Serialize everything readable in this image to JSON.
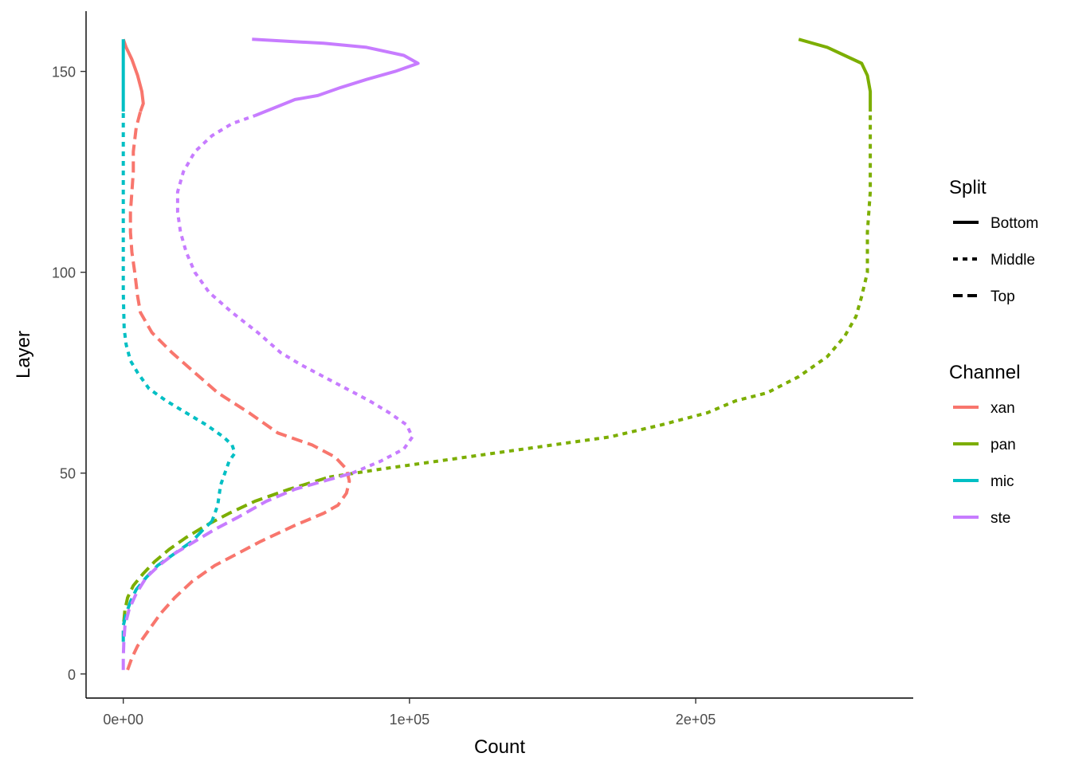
{
  "chart_data": {
    "type": "line",
    "orientation": "horizontal-x-is-count",
    "xlabel": "Count",
    "ylabel": "Layer",
    "xlim": [
      -13000,
      276000
    ],
    "ylim": [
      -6,
      165
    ],
    "x_ticks": [
      0,
      100000,
      200000
    ],
    "x_tick_labels": [
      "0e+00",
      "1e+05",
      "2e+05"
    ],
    "y_ticks": [
      0,
      50,
      100,
      150
    ],
    "y_tick_labels": [
      "0",
      "50",
      "100",
      "150"
    ],
    "grid": false,
    "legend_position": "right",
    "legend_split": {
      "title": "Split",
      "entries": [
        {
          "label": "Bottom",
          "dash": "solid"
        },
        {
          "label": "Middle",
          "dash": "dotted"
        },
        {
          "label": "Top",
          "dash": "dashed"
        }
      ]
    },
    "legend_channel": {
      "title": "Channel",
      "entries": [
        {
          "label": "xan",
          "color": "#F8766D"
        },
        {
          "label": "pan",
          "color": "#7CAE00"
        },
        {
          "label": "mic",
          "color": "#00BFC4"
        },
        {
          "label": "ste",
          "color": "#C77CFF"
        }
      ]
    },
    "series": [
      {
        "channel": "xan",
        "color": "#F8766D",
        "segments": [
          {
            "split": "Top",
            "points": [
              [
                1500,
                1
              ],
              [
                3000,
                4
              ],
              [
                5000,
                7
              ],
              [
                9000,
                11
              ],
              [
                13000,
                15
              ],
              [
                18000,
                19
              ],
              [
                24000,
                23
              ],
              [
                32000,
                27
              ],
              [
                40000,
                30
              ],
              [
                48000,
                33
              ],
              [
                60000,
                37
              ],
              [
                70000,
                40
              ],
              [
                75000,
                42
              ],
              [
                78000,
                45
              ],
              [
                79000,
                48
              ],
              [
                78000,
                51
              ],
              [
                74000,
                54
              ],
              [
                66000,
                57
              ],
              [
                54000,
                60
              ],
              [
                44000,
                65
              ],
              [
                33000,
                70
              ],
              [
                25000,
                75
              ],
              [
                17000,
                80
              ],
              [
                10000,
                85
              ],
              [
                6000,
                90
              ],
              [
                5000,
                94
              ],
              [
                4000,
                100
              ],
              [
                3000,
                105
              ],
              [
                2500,
                110
              ],
              [
                2500,
                115
              ],
              [
                3000,
                120
              ],
              [
                3500,
                125
              ],
              [
                3500,
                130
              ],
              [
                4500,
                136
              ],
              [
                6000,
                140
              ]
            ]
          },
          {
            "split": "Bottom",
            "points": [
              [
                6000,
                140
              ],
              [
                7000,
                142
              ],
              [
                6500,
                145
              ],
              [
                5000,
                149
              ],
              [
                3000,
                153
              ],
              [
                1000,
                156
              ],
              [
                0,
                158
              ]
            ]
          }
        ]
      },
      {
        "channel": "pan",
        "color": "#7CAE00",
        "segments": [
          {
            "split": "Top",
            "points": [
              [
                200,
                13
              ],
              [
                600,
                16
              ],
              [
                1500,
                19
              ],
              [
                3500,
                22
              ],
              [
                7000,
                25
              ],
              [
                11000,
                28
              ],
              [
                16000,
                31
              ],
              [
                22000,
                34
              ],
              [
                29000,
                37
              ],
              [
                37000,
                40
              ],
              [
                46000,
                43
              ],
              [
                58000,
                46
              ],
              [
                72000,
                49
              ]
            ]
          },
          {
            "split": "Middle",
            "points": [
              [
                72000,
                49
              ],
              [
                90000,
                51
              ],
              [
                110000,
                53
              ],
              [
                130000,
                55
              ],
              [
                150000,
                57
              ],
              [
                170000,
                59
              ],
              [
                188000,
                62
              ],
              [
                204000,
                65
              ],
              [
                214000,
                68
              ],
              [
                225000,
                70
              ],
              [
                236000,
                74
              ],
              [
                246000,
                79
              ],
              [
                252000,
                84
              ],
              [
                256000,
                89
              ],
              [
                258000,
                94
              ],
              [
                260000,
                100
              ],
              [
                260000,
                110
              ],
              [
                261000,
                120
              ],
              [
                261000,
                130
              ],
              [
                261000,
                140
              ]
            ]
          },
          {
            "split": "Bottom",
            "points": [
              [
                261000,
                140
              ],
              [
                261000,
                145
              ],
              [
                260000,
                149
              ],
              [
                258000,
                152
              ],
              [
                252000,
                154
              ],
              [
                246000,
                156
              ],
              [
                236000,
                158
              ]
            ]
          }
        ]
      },
      {
        "channel": "mic",
        "color": "#00BFC4",
        "segments": [
          {
            "split": "Top",
            "points": [
              [
                0,
                8
              ],
              [
                0,
                12
              ],
              [
                1000,
                15
              ],
              [
                2500,
                18
              ],
              [
                4500,
                21
              ],
              [
                8000,
                24
              ],
              [
                12000,
                27
              ],
              [
                18000,
                30
              ],
              [
                24000,
                33
              ],
              [
                28000,
                36
              ],
              [
                31000,
                38
              ]
            ]
          },
          {
            "split": "Middle",
            "points": [
              [
                31000,
                38
              ],
              [
                33000,
                42
              ],
              [
                34000,
                47
              ],
              [
                37000,
                53
              ],
              [
                39000,
                55
              ],
              [
                38000,
                57
              ],
              [
                35000,
                59
              ],
              [
                29000,
                62
              ],
              [
                22000,
                65
              ],
              [
                15000,
                68
              ],
              [
                9000,
                71
              ],
              [
                5000,
                75
              ],
              [
                2500,
                78
              ],
              [
                1000,
                82
              ],
              [
                300,
                86
              ],
              [
                0,
                95
              ],
              [
                0,
                110
              ],
              [
                0,
                125
              ],
              [
                0,
                140
              ]
            ]
          },
          {
            "split": "Bottom",
            "points": [
              [
                0,
                140
              ],
              [
                0,
                150
              ],
              [
                0,
                158
              ]
            ]
          }
        ]
      },
      {
        "channel": "ste",
        "color": "#C77CFF",
        "segments": [
          {
            "split": "Top",
            "points": [
              [
                0,
                1
              ],
              [
                0,
                4
              ],
              [
                200,
                8
              ],
              [
                600,
                12
              ],
              [
                2000,
                16
              ],
              [
                4500,
                20
              ],
              [
                8000,
                24
              ],
              [
                12500,
                27
              ],
              [
                18000,
                30
              ],
              [
                25000,
                33
              ],
              [
                32000,
                36
              ],
              [
                40000,
                39
              ],
              [
                50000,
                43
              ],
              [
                60000,
                46
              ],
              [
                70000,
                48
              ],
              [
                80000,
                50
              ]
            ]
          },
          {
            "split": "Middle",
            "points": [
              [
                80000,
                50
              ],
              [
                90000,
                53
              ],
              [
                98000,
                56
              ],
              [
                101000,
                59
              ],
              [
                99000,
                62
              ],
              [
                93000,
                65
              ],
              [
                86000,
                68
              ],
              [
                78000,
                71
              ],
              [
                70000,
                74
              ],
              [
                62000,
                77
              ],
              [
                55000,
                80
              ],
              [
                47000,
                85
              ],
              [
                38000,
                90
              ],
              [
                30000,
                95
              ],
              [
                25000,
                100
              ],
              [
                22000,
                105
              ],
              [
                20000,
                110
              ],
              [
                19000,
                115
              ],
              [
                19000,
                120
              ],
              [
                21000,
                125
              ],
              [
                25000,
                130
              ],
              [
                31000,
                134
              ],
              [
                38000,
                137
              ],
              [
                46000,
                139
              ]
            ]
          },
          {
            "split": "Bottom",
            "points": [
              [
                46000,
                139
              ],
              [
                53000,
                141
              ],
              [
                60000,
                143
              ],
              [
                68000,
                144
              ],
              [
                76000,
                146
              ],
              [
                85000,
                148
              ],
              [
                95000,
                150
              ],
              [
                103000,
                152
              ],
              [
                98000,
                154
              ],
              [
                85000,
                156
              ],
              [
                70000,
                157
              ],
              [
                45000,
                158
              ]
            ]
          }
        ]
      }
    ]
  }
}
